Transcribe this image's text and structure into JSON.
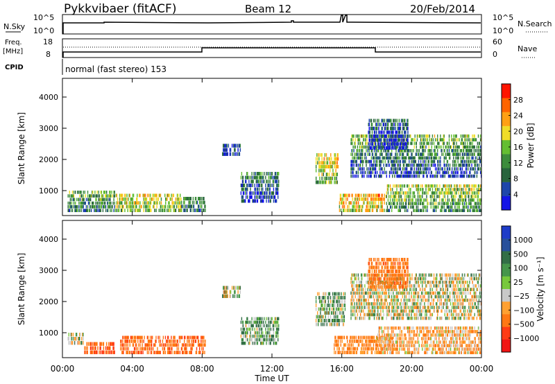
{
  "header": {
    "station": "Pykkvibaer (fitACF)",
    "beam": "Beam 12",
    "date": "20/Feb/2014"
  },
  "nsky_panel": {
    "left_label": "N.Sky",
    "left_ticks": [
      "10^5",
      "10^0"
    ],
    "right_ticks": [
      "10^5",
      "10^0"
    ],
    "right_label": "N.Search"
  },
  "freq_panel": {
    "left_label_1": "Freq.",
    "left_label_2": "[MHz]",
    "left_ticks": [
      "18",
      "8"
    ],
    "right_ticks": [
      "60",
      "0"
    ],
    "right_label": "Nave",
    "cpid_label": "CPID",
    "mode_text": "normal (fast stereo) 153"
  },
  "colors": {
    "power": [
      "#1414e6",
      "#1e46aa",
      "#28643c",
      "#3c8c3c",
      "#64be32",
      "#f0dc28",
      "#ffa014",
      "#ff6400",
      "#ff1400"
    ],
    "velocity": [
      "#1e3cc8",
      "#28509b",
      "#326e46",
      "#46964b",
      "#78c83c",
      "#c8c8c8",
      "#ffa032",
      "#ff7814",
      "#ff3c14",
      "#f01414"
    ]
  },
  "chart_data": [
    {
      "type": "heatmap",
      "name": "power",
      "ylabel": "Slant Range [km]",
      "yticks": [
        "1000",
        "2000",
        "3000",
        "4000"
      ],
      "ylim": [
        200,
        4600
      ],
      "xlim_hours": [
        0,
        24
      ],
      "colorbar": {
        "label": "Power [dB]",
        "ticks": [
          "4",
          "8",
          "12",
          "16",
          "20",
          "24",
          "28"
        ],
        "range": [
          0,
          32
        ]
      },
      "regions": [
        {
          "t": [
            0.3,
            3.0
          ],
          "r": [
            300,
            1000
          ],
          "level": 16
        },
        {
          "t": [
            3.0,
            6.8
          ],
          "r": [
            300,
            900
          ],
          "level": 22
        },
        {
          "t": [
            6.8,
            8.2
          ],
          "r": [
            300,
            800
          ],
          "level": 14
        },
        {
          "t": [
            9.1,
            10.2
          ],
          "r": [
            2100,
            2500
          ],
          "level": 6
        },
        {
          "t": [
            10.2,
            12.4
          ],
          "r": [
            600,
            1600
          ],
          "level": 12
        },
        {
          "t": [
            14.5,
            15.8
          ],
          "r": [
            1200,
            2200
          ],
          "level": 24
        },
        {
          "t": [
            15.8,
            18.5
          ],
          "r": [
            300,
            900
          ],
          "level": 26
        },
        {
          "t": [
            16.5,
            24.0
          ],
          "r": [
            1400,
            2800
          ],
          "level": 18
        },
        {
          "t": [
            18.5,
            24.0
          ],
          "r": [
            300,
            1200
          ],
          "level": 20
        },
        {
          "t": [
            17.5,
            19.8
          ],
          "r": [
            2300,
            3300
          ],
          "level": 10
        }
      ]
    },
    {
      "type": "heatmap",
      "name": "velocity",
      "ylabel": "Slant Range [km]",
      "yticks": [
        "1000",
        "2000",
        "3000",
        "4000"
      ],
      "ylim": [
        200,
        4600
      ],
      "xlim_hours": [
        0,
        24
      ],
      "xticks": [
        "00:00",
        "04:00",
        "08:00",
        "12:00",
        "16:00",
        "20:00",
        "00:00"
      ],
      "xlabel": "Time UT",
      "colorbar": {
        "label": "Velocity [m s⁻¹]",
        "ticks": [
          "1000",
          "500",
          "100",
          "25",
          "−25",
          "−100",
          "−500",
          "−1000"
        ]
      },
      "regions": [
        {
          "t": [
            0.3,
            1.2
          ],
          "r": [
            600,
            1000
          ],
          "velocity": 0
        },
        {
          "t": [
            1.2,
            3.0
          ],
          "r": [
            300,
            700
          ],
          "velocity": -300
        },
        {
          "t": [
            3.3,
            8.2
          ],
          "r": [
            300,
            900
          ],
          "velocity": -250
        },
        {
          "t": [
            9.1,
            10.2
          ],
          "r": [
            2100,
            2500
          ],
          "velocity": 0
        },
        {
          "t": [
            10.2,
            12.4
          ],
          "r": [
            600,
            1500
          ],
          "velocity": 80
        },
        {
          "t": [
            14.5,
            16.2
          ],
          "r": [
            1200,
            2300
          ],
          "velocity": 60
        },
        {
          "t": [
            15.5,
            19.0
          ],
          "r": [
            300,
            900
          ],
          "velocity": -150
        },
        {
          "t": [
            16.5,
            24.0
          ],
          "r": [
            1400,
            2900
          ],
          "velocity": 0
        },
        {
          "t": [
            18.0,
            24.0
          ],
          "r": [
            300,
            1200
          ],
          "velocity": -80
        },
        {
          "t": [
            17.5,
            19.8
          ],
          "r": [
            2400,
            3400
          ],
          "velocity": -200
        }
      ]
    }
  ]
}
